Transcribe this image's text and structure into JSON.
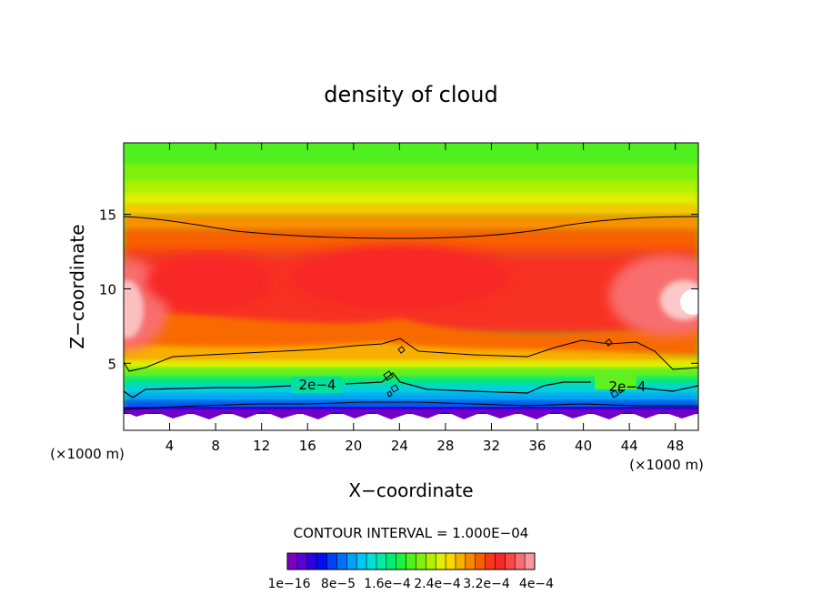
{
  "chart_data": {
    "type": "heatmap",
    "title": "density of cloud",
    "xlabel": "X−coordinate",
    "ylabel": "Z−coordinate",
    "x_unit_left": "(×1000 m)",
    "x_unit_right": "(×1000 m)",
    "xlim": [
      0,
      50
    ],
    "ylim": [
      0.5,
      19.8
    ],
    "x_ticks": [
      4,
      8,
      12,
      16,
      20,
      24,
      28,
      32,
      36,
      40,
      44,
      48
    ],
    "y_ticks": [
      5,
      10,
      15
    ],
    "contour_interval_text": "CONTOUR INTERVAL = 1.000E−04",
    "contour_label": "2e−4",
    "colorbar": {
      "min": 1e-16,
      "max": 0.0004,
      "colors": [
        "#7a00c4",
        "#5a00d8",
        "#2c00e6",
        "#0010f0",
        "#0040f6",
        "#0070fa",
        "#00a0fc",
        "#00c8f4",
        "#00e0d8",
        "#00eaa8",
        "#00ee70",
        "#20f040",
        "#50f020",
        "#80f010",
        "#b0f000",
        "#e0f000",
        "#f8d800",
        "#f8b000",
        "#f88800",
        "#f86000",
        "#f83818",
        "#f82828",
        "#f84848",
        "#f86e6e",
        "#f89898"
      ],
      "labels": [
        "1e−16",
        "8e−5",
        "1.6e−4",
        "2.4e−4",
        "3.2e−4",
        "4e−4"
      ]
    }
  }
}
